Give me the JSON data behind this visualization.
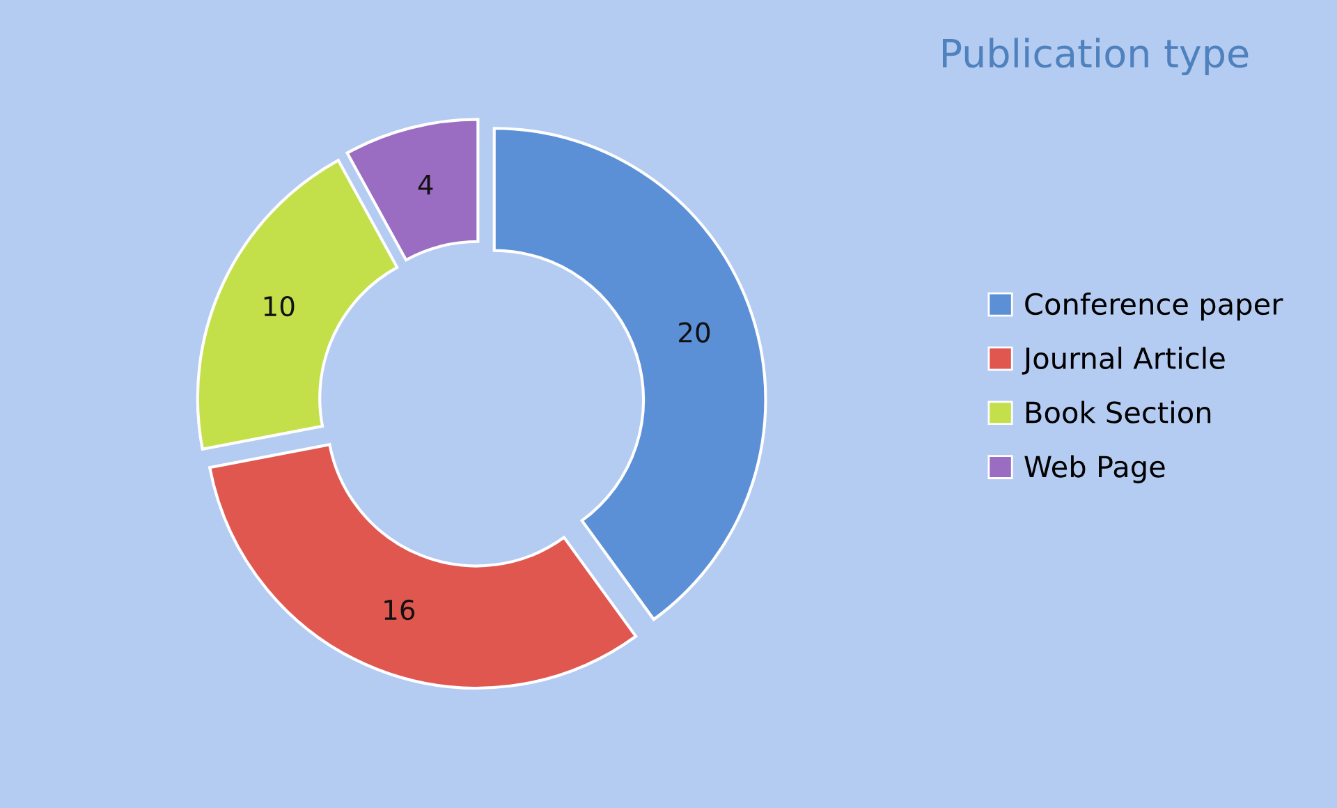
{
  "chart_data": {
    "type": "donut",
    "title": "Publication type",
    "categories": [
      "Conference paper",
      "Journal Article",
      "Book Section",
      "Web Page"
    ],
    "values": [
      20,
      16,
      10,
      4
    ],
    "colors": [
      "#5b8fd6",
      "#e0574f",
      "#c3e04a",
      "#9a6cc2"
    ],
    "data_labels": true,
    "legend": "right"
  }
}
